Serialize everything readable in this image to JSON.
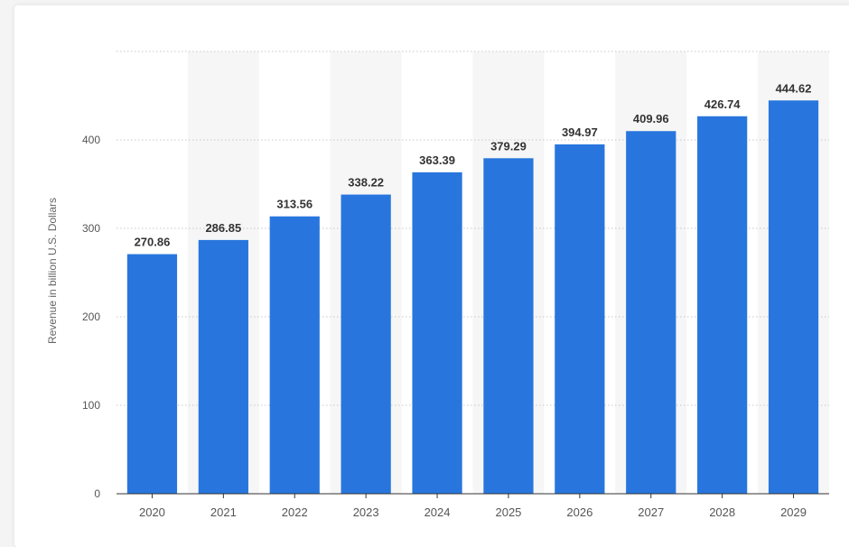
{
  "chart_data": {
    "type": "bar",
    "categories": [
      "2020",
      "2021",
      "2022",
      "2023",
      "2024",
      "2025",
      "2026",
      "2027",
      "2028",
      "2029"
    ],
    "values": [
      270.86,
      286.85,
      313.56,
      338.22,
      363.39,
      379.29,
      394.97,
      409.96,
      426.74,
      444.62
    ],
    "value_labels": [
      "270.86",
      "286.85",
      "313.56",
      "338.22",
      "363.39",
      "379.29",
      "394.97",
      "409.96",
      "426.74",
      "444.62"
    ],
    "title": "",
    "xlabel": "",
    "ylabel": "Revenue in billion U.S. Dollars",
    "ylim": [
      0,
      500
    ],
    "yticks": [
      0,
      100,
      200,
      300,
      400
    ],
    "grid": true,
    "legend": "none",
    "colors": {
      "bar": "#2876dd",
      "band": "#f6f6f6",
      "grid": "#c8c8c8",
      "axis": "#333333",
      "tick_label": "#555555",
      "value_label": "#333333"
    }
  }
}
